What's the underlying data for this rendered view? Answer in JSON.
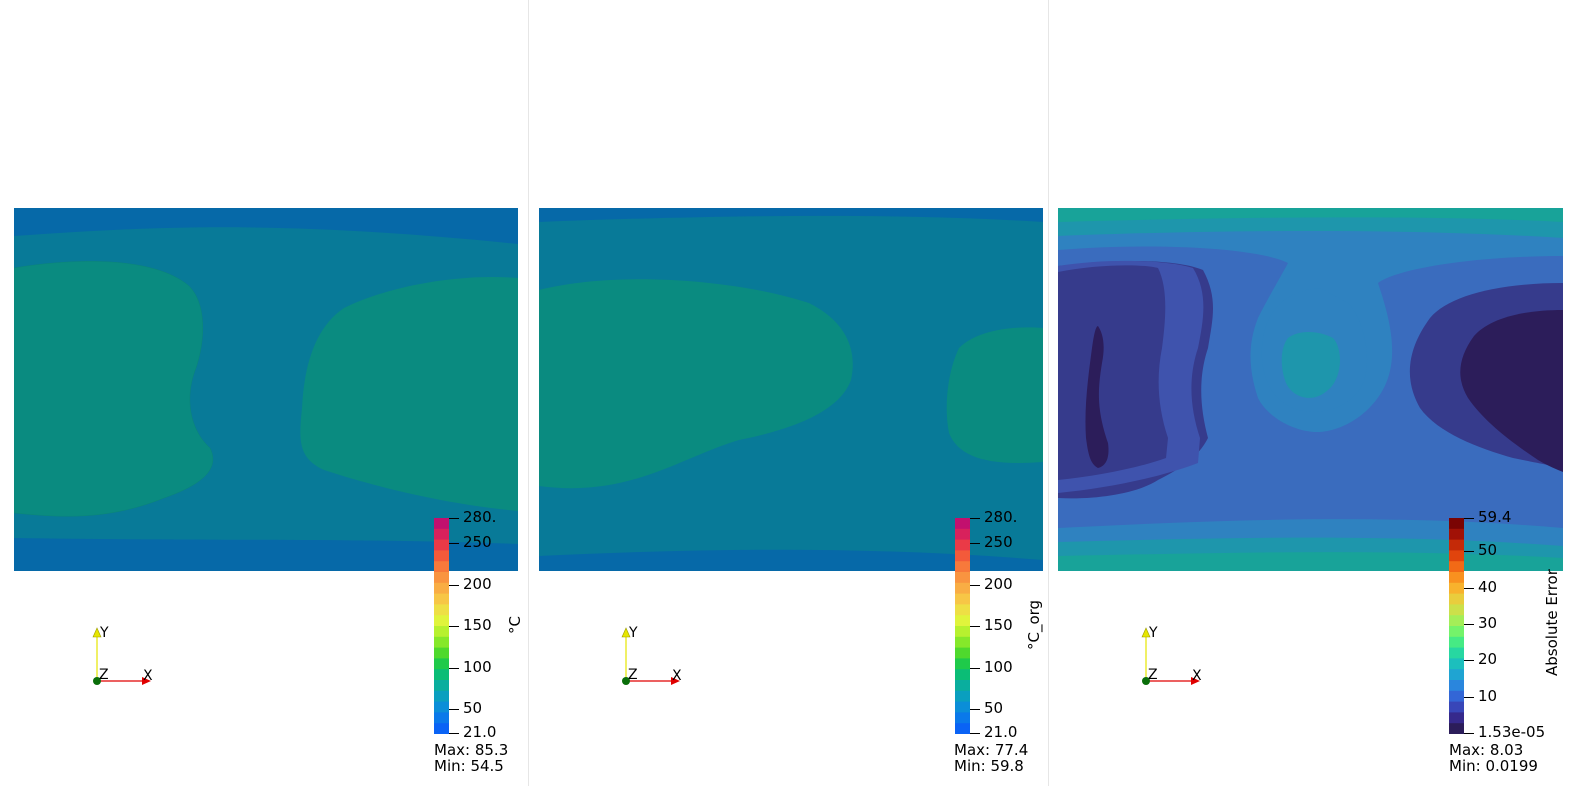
{
  "panels": [
    {
      "id": "predicted",
      "colorbar": {
        "title": "°C",
        "ticks": [
          "280.",
          "250",
          "200",
          "150",
          "100",
          "50",
          "21.0"
        ],
        "tick_values": [
          280,
          250,
          200,
          150,
          100,
          50,
          21
        ],
        "range": [
          21,
          280
        ],
        "colormap": "jet-like"
      },
      "max_label": "Max: 85.3",
      "min_label": "Min: 54.5",
      "axes": {
        "x": "X",
        "y": "Y",
        "z": "Z"
      }
    },
    {
      "id": "original",
      "colorbar": {
        "title": "°C_org",
        "ticks": [
          "280.",
          "250",
          "200",
          "150",
          "100",
          "50",
          "21.0"
        ],
        "tick_values": [
          280,
          250,
          200,
          150,
          100,
          50,
          21
        ],
        "range": [
          21,
          280
        ],
        "colormap": "jet-like"
      },
      "max_label": "Max: 77.4",
      "min_label": "Min: 59.8",
      "axes": {
        "x": "X",
        "y": "Y",
        "z": "Z"
      }
    },
    {
      "id": "error",
      "colorbar": {
        "title": "Absolute Error",
        "ticks": [
          "59.4",
          "50",
          "40",
          "30",
          "20",
          "10",
          "1.53e-05"
        ],
        "tick_values": [
          59.4,
          50,
          40,
          30,
          20,
          10,
          1.53e-05
        ],
        "range": [
          1.53e-05,
          59.4
        ],
        "colormap": "turbo-like"
      },
      "max_label": "Max: 8.03",
      "min_label": "Min: 0.0199",
      "axes": {
        "x": "X",
        "y": "Y",
        "z": "Z"
      }
    }
  ],
  "colors": {
    "temp_band_outer": "#0669a8",
    "temp_band_mid": "#087a98",
    "temp_band_inner": "#0a8b80",
    "err_level0": "#2c1d5a",
    "err_level1": "#363b8c",
    "err_level2": "#3f53ad",
    "err_level3": "#3a6cbe",
    "err_level4": "#2f82c0",
    "err_level5": "#1e96ac",
    "err_level6": "#18a399"
  }
}
